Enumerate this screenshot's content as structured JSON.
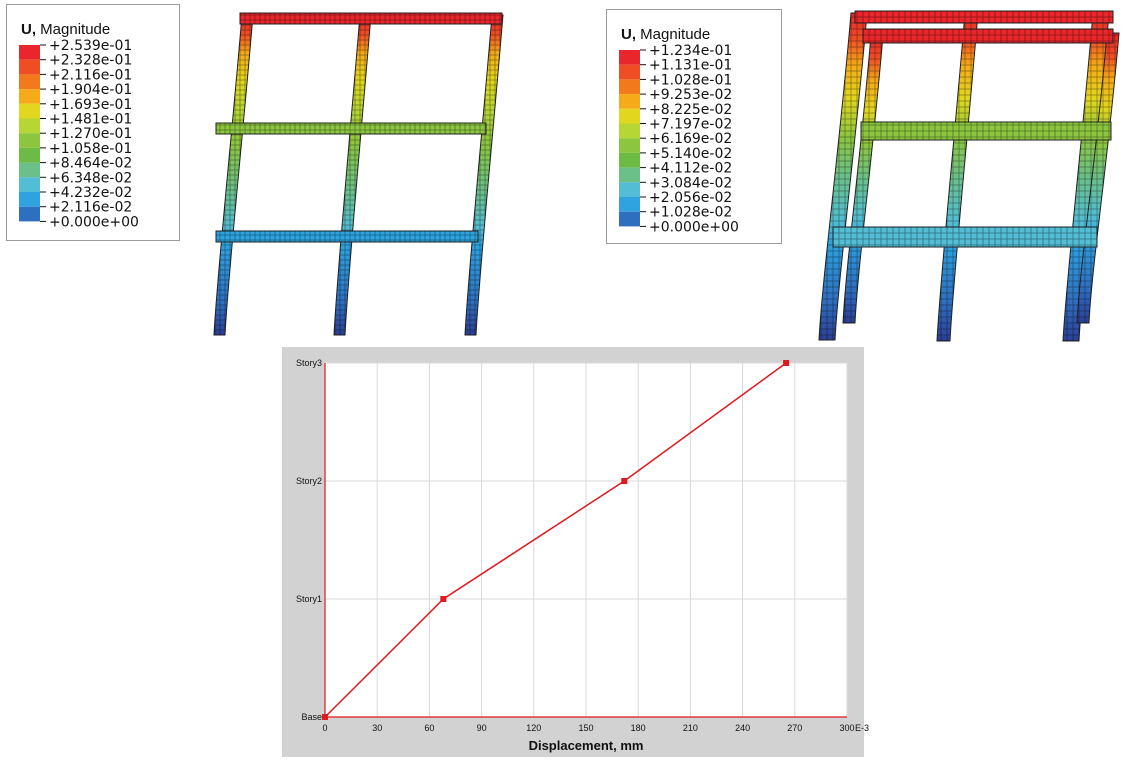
{
  "legends": [
    {
      "title_prefix": "U,",
      "title_rest": " Magnitude",
      "labels": [
        "+2.539e-01",
        "+2.328e-01",
        "+2.116e-01",
        "+1.904e-01",
        "+1.693e-01",
        "+1.481e-01",
        "+1.270e-01",
        "+1.058e-01",
        "+8.464e-02",
        "+6.348e-02",
        "+4.232e-02",
        "+2.116e-02",
        "+0.000e+00"
      ]
    },
    {
      "title_prefix": "U,",
      "title_rest": " Magnitude",
      "labels": [
        "+1.234e-01",
        "+1.131e-01",
        "+1.028e-01",
        "+9.253e-02",
        "+8.225e-02",
        "+7.197e-02",
        "+6.169e-02",
        "+5.140e-02",
        "+4.112e-02",
        "+3.084e-02",
        "+2.056e-02",
        "+1.028e-02",
        "+0.000e+00"
      ]
    }
  ],
  "colors": {
    "contour_scale": [
      "#e8262b",
      "#ef4e24",
      "#f27a1d",
      "#f5ab19",
      "#e3d61e",
      "#b6d635",
      "#8cc63f",
      "#6dbb45",
      "#6bc08a",
      "#52bdd4",
      "#2ea3e0",
      "#2f6fbf",
      "#2c3f94"
    ],
    "chart_line": "#e0181f",
    "chart_frame": "#d2d2d2",
    "grid": "#d9d9d9"
  },
  "chart_data": {
    "type": "line",
    "x": [
      0,
      68,
      172,
      265
    ],
    "categories": [
      "Base",
      "Story1",
      "Story2",
      "Story3"
    ],
    "series": [
      {
        "values": [
          0,
          68,
          172,
          265
        ]
      }
    ],
    "x_ticks": [
      "0",
      "30",
      "60",
      "90",
      "120",
      "150",
      "180",
      "210",
      "240",
      "270",
      "300"
    ],
    "x_tick_suffix": "E-3",
    "xlabel": "Displacement, mm",
    "ylabel": "",
    "xlim": [
      0,
      300
    ],
    "grid": true
  }
}
